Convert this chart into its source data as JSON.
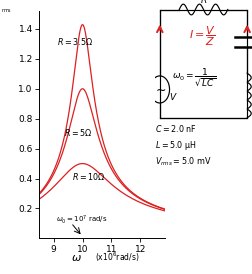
{
  "C": 2e-09,
  "L": 5e-06,
  "V_rms": 0.005,
  "R_values": [
    3.5,
    5.0,
    10.0
  ],
  "omega_range_min": 8500000.0,
  "omega_range_max": 12850000.0,
  "ylim_min": 0.0,
  "ylim_max": 1.52,
  "xlim_min": 8.5,
  "xlim_max": 12.85,
  "curve_color": "#dd2020",
  "yticks": [
    0.2,
    0.4,
    0.6,
    0.8,
    1.0,
    1.2,
    1.4
  ],
  "xticks": [
    9,
    10,
    11,
    12
  ],
  "R_label_3p5": "$R = 3.5\\Omega$",
  "R_label_5": "$R = 5\\Omega$",
  "R_label_10": "$R = 10\\Omega$",
  "C_text": "$C = 2.0$ nF",
  "L_text": "$L = 5.0$ μH",
  "V_text": "$V_{rms} = 5.0$ mV",
  "omega0_text": "$\\omega_0 = 10^7$ rad/s"
}
